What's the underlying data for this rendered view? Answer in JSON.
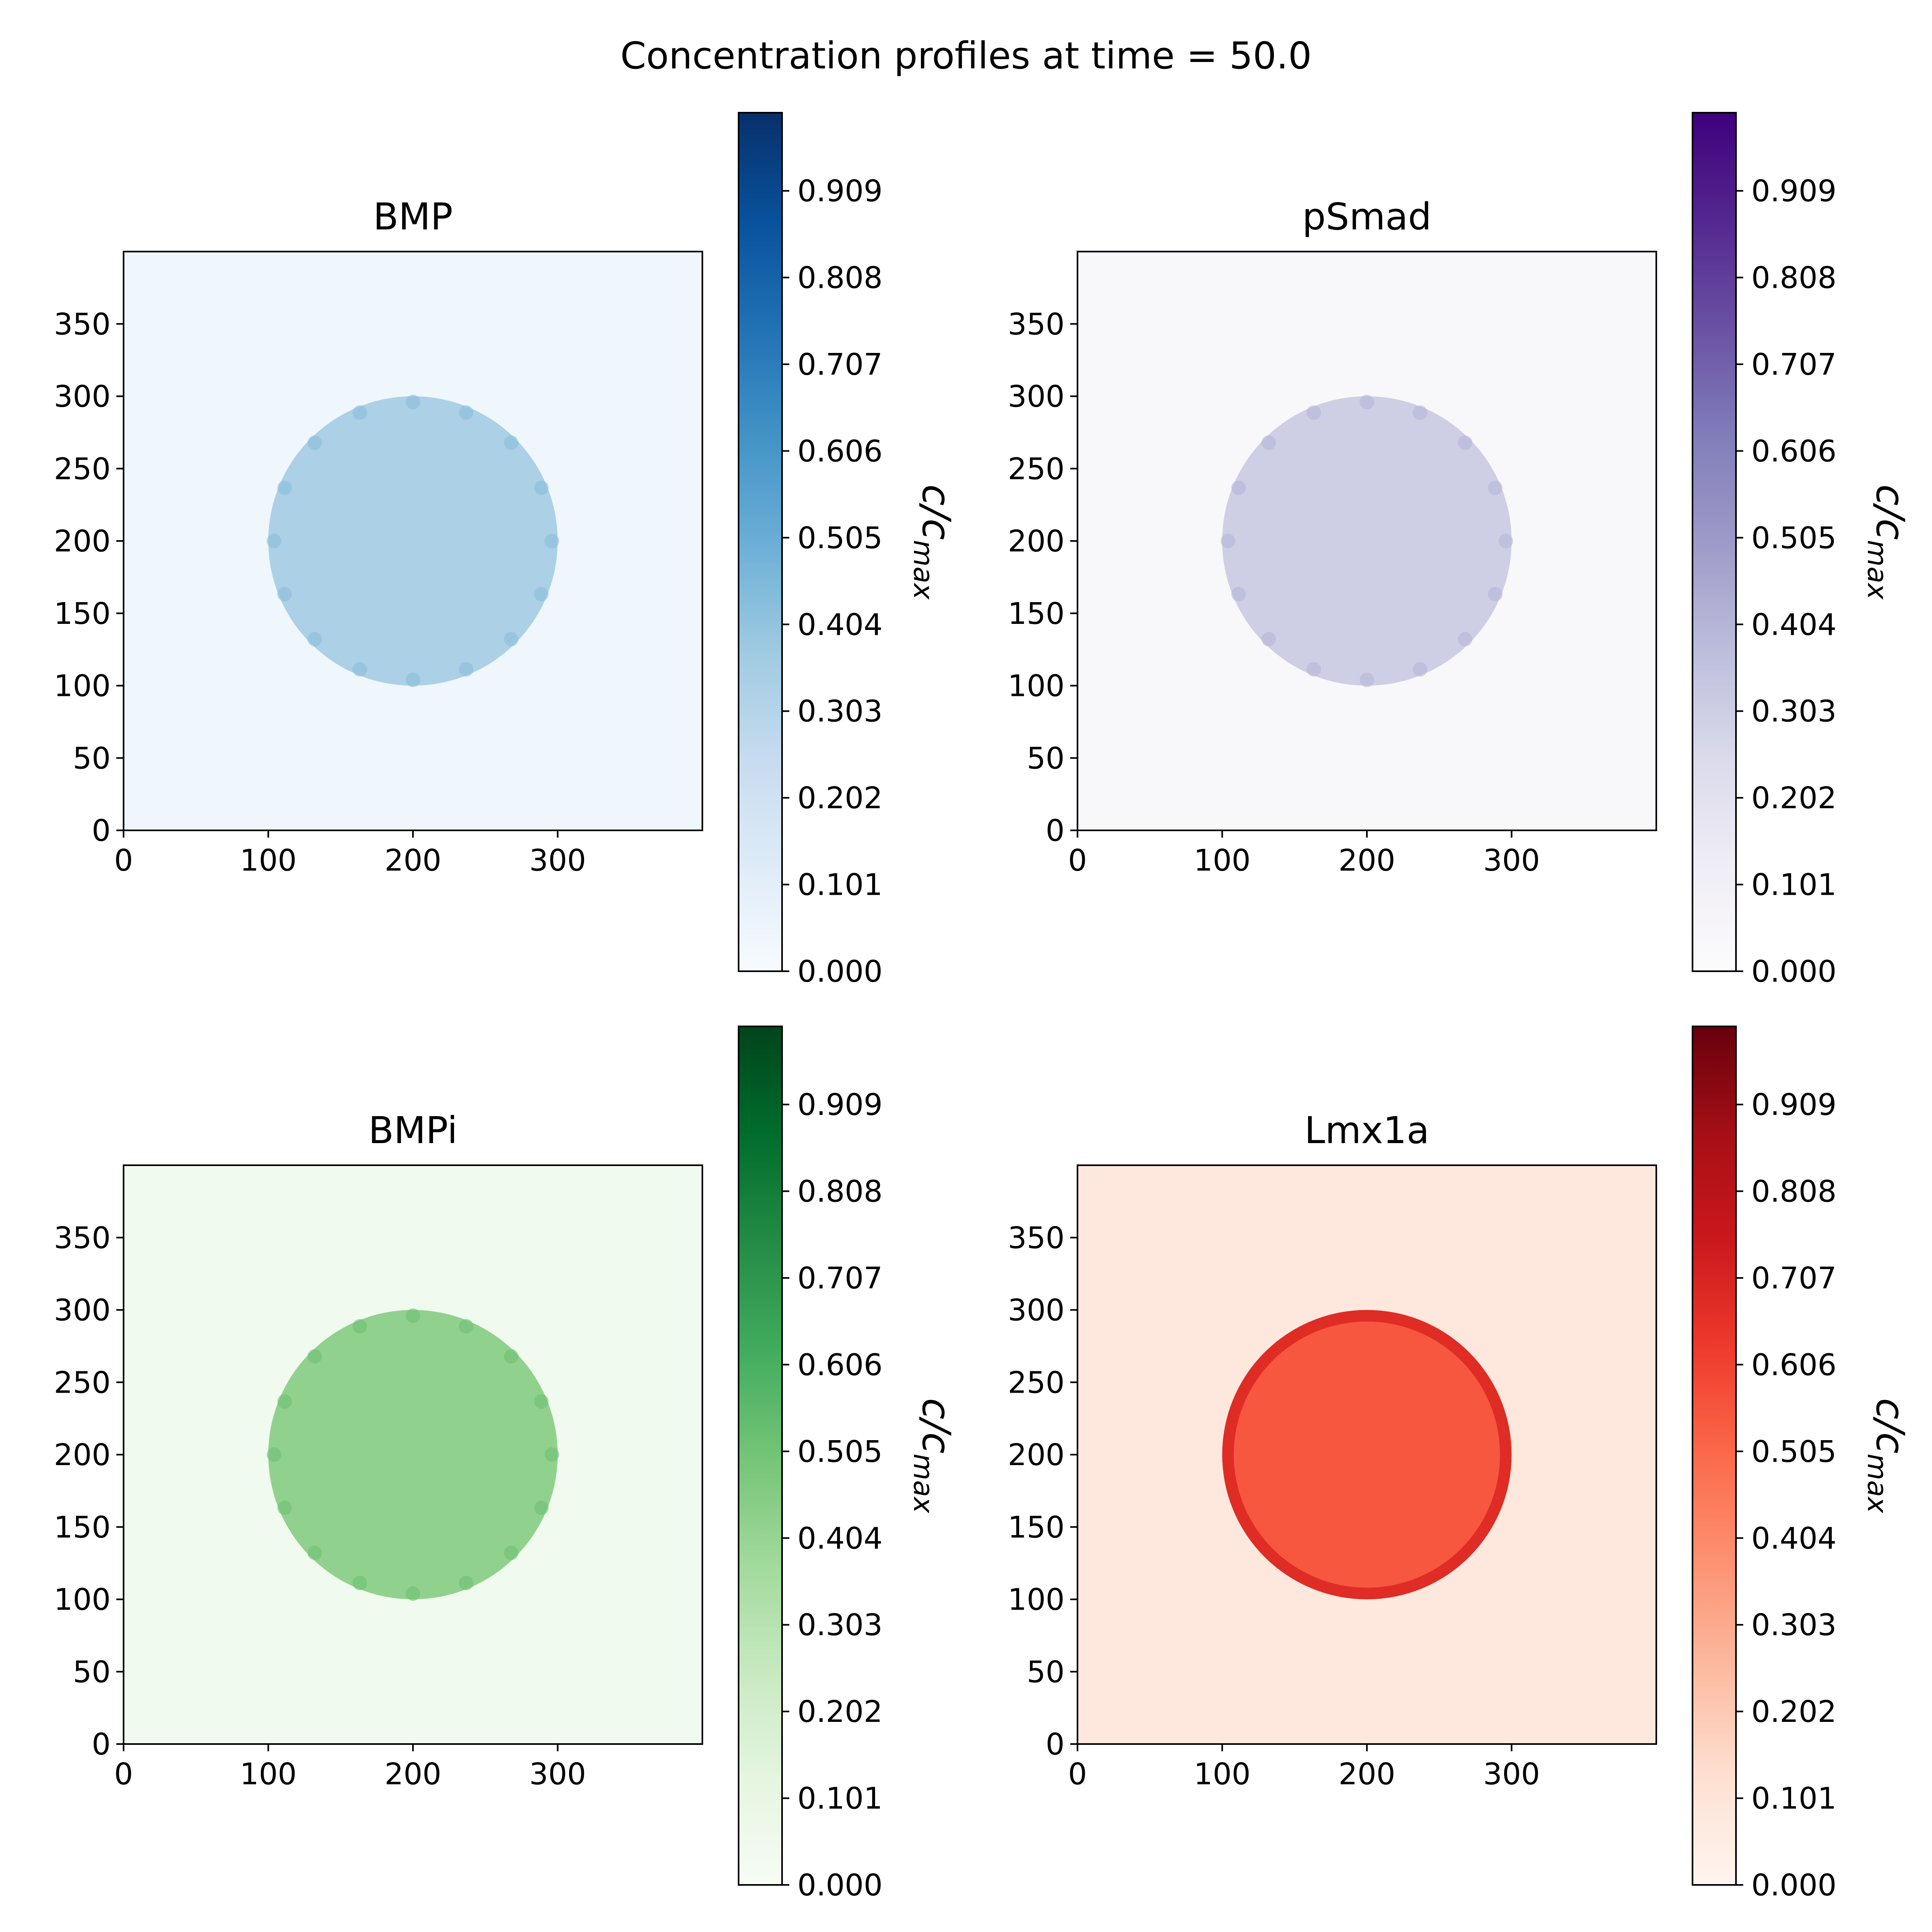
{
  "figure_title": "Concentration profiles at time = 50.0",
  "chart_data": [
    {
      "type": "heatmap",
      "title": "BMP",
      "colormap": "Blues",
      "background_value": 0.04,
      "disk": {
        "center": [
          200,
          200
        ],
        "radius": 100,
        "value": 0.33
      },
      "xlim": [
        0,
        400
      ],
      "ylim": [
        0,
        400
      ],
      "xticks": [
        0,
        100,
        200,
        300
      ],
      "yticks": [
        0,
        50,
        100,
        150,
        200,
        250,
        300,
        350
      ],
      "colorbar": {
        "label": "c/c",
        "label_sub": "max",
        "range": [
          0,
          1.0
        ],
        "ticks": [
          "0.000",
          "0.101",
          "0.202",
          "0.303",
          "0.404",
          "0.505",
          "0.606",
          "0.707",
          "0.808",
          "0.909"
        ]
      }
    },
    {
      "type": "heatmap",
      "title": "pSmad",
      "colormap": "Purples",
      "background_value": 0.04,
      "disk": {
        "center": [
          200,
          200
        ],
        "radius": 100,
        "value": 0.3
      },
      "xlim": [
        0,
        400
      ],
      "ylim": [
        0,
        400
      ],
      "xticks": [
        0,
        100,
        200,
        300
      ],
      "yticks": [
        0,
        50,
        100,
        150,
        200,
        250,
        300,
        350
      ],
      "colorbar": {
        "label": "c/c",
        "label_sub": "max",
        "range": [
          0,
          1.0
        ],
        "ticks": [
          "0.000",
          "0.101",
          "0.202",
          "0.303",
          "0.404",
          "0.505",
          "0.606",
          "0.707",
          "0.808",
          "0.909"
        ]
      }
    },
    {
      "type": "heatmap",
      "title": "BMPi",
      "colormap": "Greens",
      "background_value": 0.04,
      "disk": {
        "center": [
          200,
          200
        ],
        "radius": 100,
        "value": 0.42
      },
      "xlim": [
        0,
        400
      ],
      "ylim": [
        0,
        400
      ],
      "xticks": [
        0,
        100,
        200,
        300
      ],
      "yticks": [
        0,
        50,
        100,
        150,
        200,
        250,
        300,
        350
      ],
      "colorbar": {
        "label": "c/c",
        "label_sub": "max",
        "range": [
          0,
          1.0
        ],
        "ticks": [
          "0.000",
          "0.101",
          "0.202",
          "0.303",
          "0.404",
          "0.505",
          "0.606",
          "0.707",
          "0.808",
          "0.909"
        ]
      }
    },
    {
      "type": "heatmap",
      "title": "Lmx1a",
      "colormap": "Reds",
      "background_value": 0.08,
      "disk": {
        "center": [
          200,
          200
        ],
        "radius": 100,
        "value": 0.55,
        "rim_value": 0.68
      },
      "xlim": [
        0,
        400
      ],
      "ylim": [
        0,
        400
      ],
      "xticks": [
        0,
        100,
        200,
        300
      ],
      "yticks": [
        0,
        50,
        100,
        150,
        200,
        250,
        300,
        350
      ],
      "colorbar": {
        "label": "c/c",
        "label_sub": "max",
        "range": [
          0,
          1.0
        ],
        "ticks": [
          "0.000",
          "0.101",
          "0.202",
          "0.303",
          "0.404",
          "0.505",
          "0.606",
          "0.707",
          "0.808",
          "0.909"
        ]
      }
    }
  ],
  "colormaps": {
    "Blues": [
      "#f7fbff",
      "#deebf7",
      "#c6dbef",
      "#9ecae1",
      "#6baed6",
      "#4292c6",
      "#2171b5",
      "#08519c",
      "#08306b"
    ],
    "Purples": [
      "#fcfbfd",
      "#efedf5",
      "#dadaeb",
      "#bcbddc",
      "#9e9ac8",
      "#807dba",
      "#6a51a3",
      "#54278f",
      "#3f007d"
    ],
    "Greens": [
      "#f7fcf5",
      "#e5f5e0",
      "#c7e9c0",
      "#a1d99b",
      "#74c476",
      "#41ab5d",
      "#238b45",
      "#006d2c",
      "#00441b"
    ],
    "Reds": [
      "#fff5f0",
      "#fee0d2",
      "#fcbba1",
      "#fc9272",
      "#fb6a4a",
      "#ef3b2c",
      "#cb181d",
      "#a50f15",
      "#67000d"
    ]
  }
}
